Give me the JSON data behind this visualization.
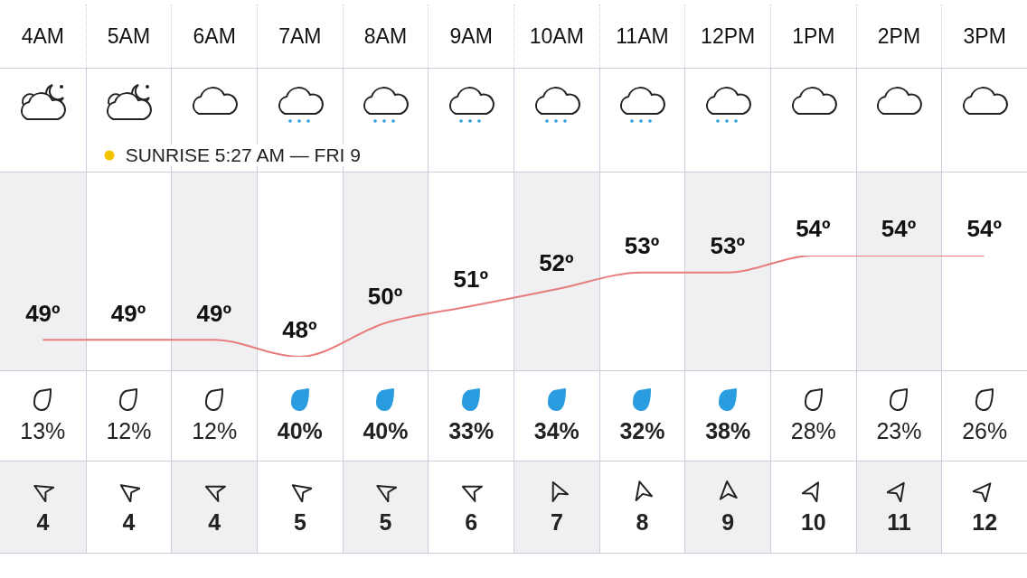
{
  "chart_data": [
    {
      "type": "line",
      "categories": [
        "4AM",
        "5AM",
        "6AM",
        "7AM",
        "8AM",
        "9AM",
        "10AM",
        "11AM",
        "12PM",
        "1PM",
        "2PM",
        "3PM"
      ],
      "values": [
        49,
        49,
        49,
        48,
        50,
        51,
        52,
        53,
        53,
        54,
        54,
        54
      ],
      "value_labels": [
        "49º",
        "49º",
        "49º",
        "48º",
        "50º",
        "51º",
        "52º",
        "53º",
        "53º",
        "54º",
        "54º",
        "54º"
      ],
      "color": "#e87c7c",
      "marker": "none",
      "legend": false,
      "tick_labels": "x",
      "annotations": [
        "SUNRISE 5:27 AM — FRI 9"
      ]
    },
    {
      "type": "other",
      "values": [
        13,
        12,
        12,
        40,
        40,
        33,
        34,
        32,
        38,
        28,
        23,
        26
      ],
      "value_labels": [
        "13%",
        "12%",
        "12%",
        "40%",
        "40%",
        "33%",
        "34%",
        "32%",
        "38%",
        "28%",
        "23%",
        "26%"
      ]
    },
    {
      "type": "other",
      "values": [
        4,
        4,
        4,
        5,
        5,
        6,
        7,
        8,
        9,
        10,
        11,
        12
      ],
      "data_labels": true
    }
  ]
}
